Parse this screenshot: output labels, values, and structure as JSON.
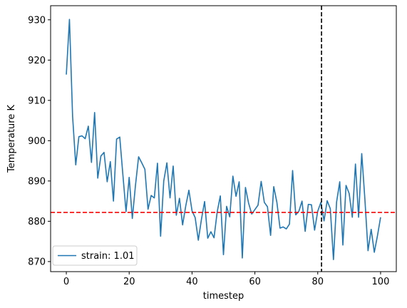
{
  "chart_data": {
    "type": "line",
    "title": "",
    "xlabel": "timestep",
    "ylabel": "Temperature K",
    "xlim": [
      -5,
      105
    ],
    "ylim": [
      867.5,
      933.5
    ],
    "xticks": [
      0,
      20,
      40,
      60,
      80,
      100
    ],
    "yticks": [
      870,
      880,
      890,
      900,
      910,
      920,
      930
    ],
    "grid": false,
    "legend_position": "lower-left",
    "series": [
      {
        "name": "strain: 1.01",
        "color": "#1f77b4",
        "x": [
          0,
          1,
          2,
          3,
          4,
          5,
          6,
          7,
          8,
          9,
          10,
          11,
          12,
          13,
          14,
          15,
          16,
          17,
          18,
          19,
          20,
          21,
          22,
          23,
          24,
          25,
          26,
          27,
          28,
          29,
          30,
          31,
          32,
          33,
          34,
          35,
          36,
          37,
          38,
          39,
          40,
          41,
          42,
          43,
          44,
          45,
          46,
          47,
          48,
          49,
          50,
          51,
          52,
          53,
          54,
          55,
          56,
          57,
          58,
          59,
          60,
          61,
          62,
          63,
          64,
          65,
          66,
          67,
          68,
          69,
          70,
          71,
          72,
          73,
          74,
          75,
          76,
          77,
          78,
          79,
          80,
          81,
          82,
          83,
          84,
          85,
          86,
          87,
          88,
          89,
          90,
          91,
          92,
          93,
          94,
          95,
          96,
          97,
          98,
          99,
          100
        ],
        "y": [
          916.4,
          930.1,
          906.0,
          894.0,
          901.0,
          901.2,
          900.5,
          903.6,
          894.6,
          907.0,
          890.7,
          896.2,
          897.1,
          889.8,
          894.8,
          885.0,
          900.4,
          900.9,
          891.5,
          882.4,
          890.9,
          880.7,
          888.9,
          896.0,
          894.5,
          892.9,
          883.0,
          886.4,
          885.8,
          894.4,
          876.3,
          890.0,
          894.5,
          885.8,
          893.7,
          881.5,
          885.7,
          879.1,
          883.8,
          887.7,
          882.6,
          880.9,
          875.3,
          880.5,
          884.9,
          875.8,
          877.4,
          875.9,
          882.3,
          886.3,
          871.7,
          883.7,
          881.1,
          891.2,
          886.2,
          889.8,
          870.9,
          888.4,
          884.5,
          881.8,
          882.9,
          884.0,
          889.9,
          884.7,
          883.6,
          876.5,
          888.6,
          884.7,
          878.3,
          878.6,
          878.1,
          879.3,
          892.6,
          881.6,
          882.5,
          885.0,
          877.5,
          884.2,
          884.1,
          877.8,
          882.5,
          884.7,
          880.1,
          885.1,
          883.1,
          870.5,
          884.8,
          889.8,
          874.1,
          888.9,
          886.9,
          881.0,
          894.2,
          881.0,
          896.8,
          885.5,
          872.7,
          878.0,
          872.3,
          876.4,
          881.0
        ]
      }
    ],
    "reference_lines": [
      {
        "orientation": "horizontal",
        "value": 882.2,
        "color": "#ff0000",
        "style": "dashed"
      },
      {
        "orientation": "vertical",
        "value": 81.2,
        "color": "#000000",
        "style": "dashed"
      }
    ]
  }
}
